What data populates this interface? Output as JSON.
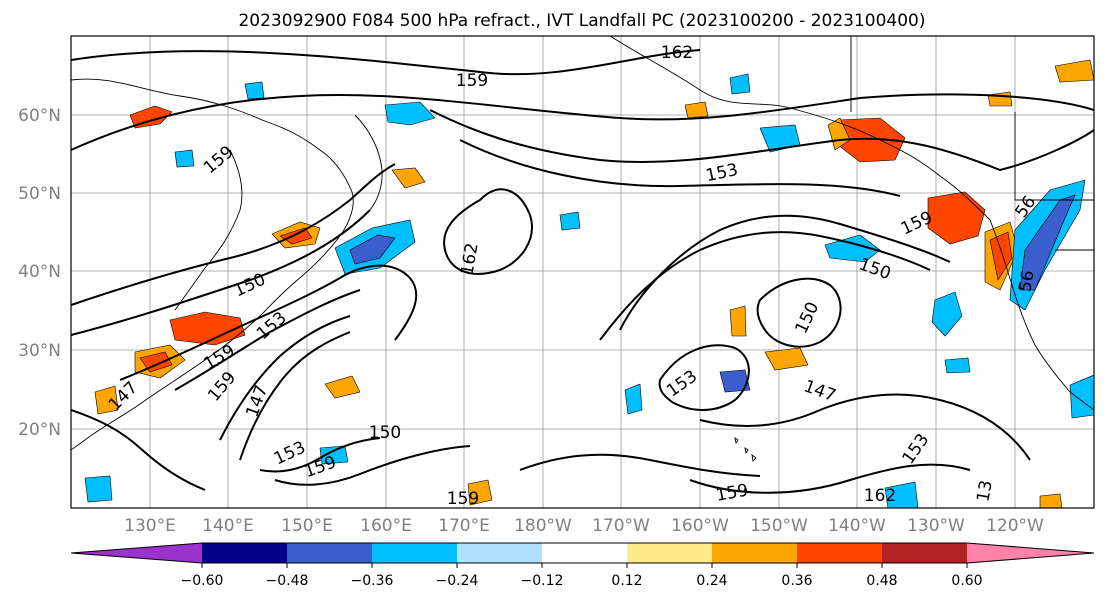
{
  "title": "2023092900 F084 500 hPa refract., IVT Landfall PC (2023100200 - 2023100400)",
  "map": {
    "lat_labels": [
      "60°N",
      "50°N",
      "40°N",
      "30°N",
      "20°N"
    ],
    "lon_labels": [
      "130°E",
      "140°E",
      "150°E",
      "160°E",
      "170°E",
      "180°W",
      "170°W",
      "160°W",
      "150°W",
      "140°W",
      "130°W",
      "120°W"
    ],
    "contour_labels": [
      "162",
      "159",
      "159",
      "153",
      "159",
      "56",
      "162",
      "150",
      "150",
      "150",
      "56",
      "159",
      "153",
      "147",
      "153",
      "147",
      "147",
      "150",
      "159",
      "162",
      "153",
      "159",
      "159",
      "153",
      "13",
      "159"
    ]
  },
  "colorbar": {
    "colors": [
      "#9b32cd",
      "#00008b",
      "#3a5fcd",
      "#00bfff",
      "#b0e2ff",
      "#ffffff",
      "#ffec8b",
      "#ffa500",
      "#ff4500",
      "#b22222",
      "#ff82ab"
    ],
    "tick_labels": [
      "−0.60",
      "−0.48",
      "−0.36",
      "−0.24",
      "−0.12",
      "0.12",
      "0.24",
      "0.36",
      "0.48",
      "0.60"
    ]
  }
}
